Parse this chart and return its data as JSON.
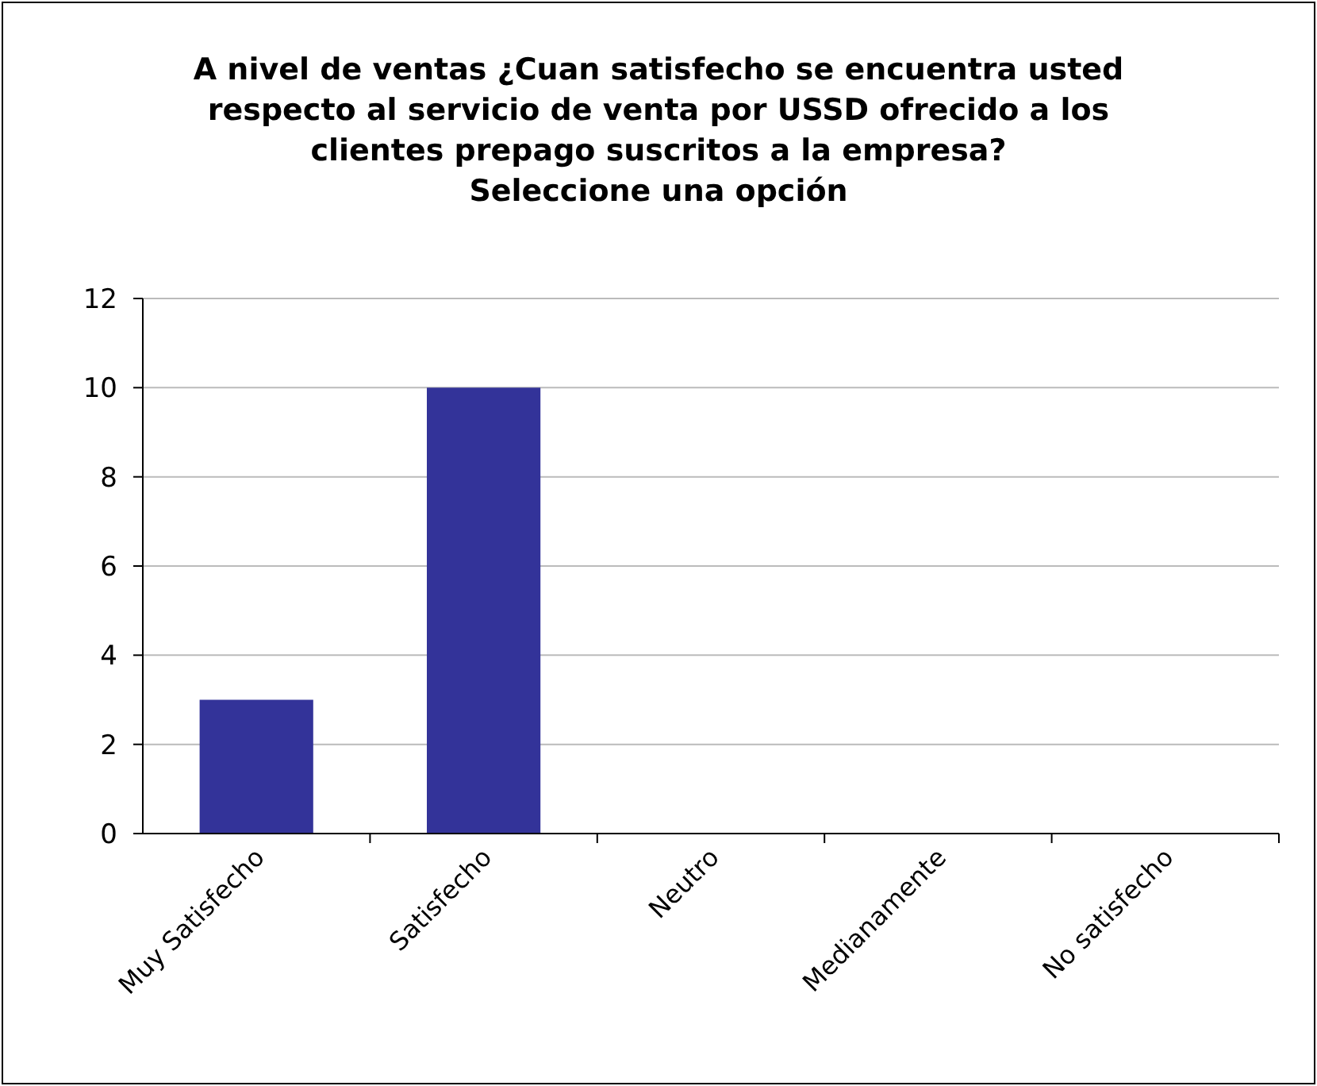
{
  "chart_data": {
    "type": "bar",
    "title": "A nivel de ventas ¿Cuan satisfecho se encuentra usted\nrespecto al servicio de venta por USSD ofrecido a los\nclientes prepago suscritos a la empresa?\nSeleccione una opción",
    "categories": [
      "Muy Satisfecho",
      "Satisfecho",
      "Neutro",
      "Medianamente",
      "No satisfecho"
    ],
    "values": [
      3,
      10,
      0,
      0,
      0
    ],
    "color": "#333399",
    "ylim": [
      0,
      12
    ],
    "yticks": [
      0,
      2,
      4,
      6,
      8,
      10,
      12
    ],
    "grid": "y"
  }
}
